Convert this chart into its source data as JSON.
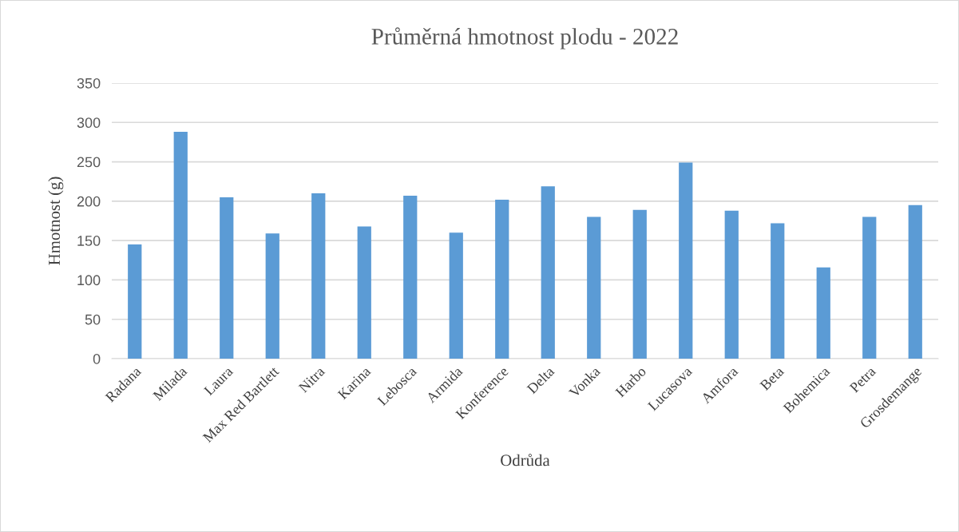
{
  "chart_data": {
    "type": "bar",
    "title": "Průměrná hmotnost plodu - 2022",
    "xlabel": "Odrůda",
    "ylabel": "Hmotnost (g)",
    "categories": [
      "Radana",
      "Milada",
      "Laura",
      "Max Red Bartlett",
      "Nitra",
      "Karina",
      "Lebosca",
      "Armida",
      "Konference",
      "Delta",
      "Vonka",
      "Harbo",
      "Lucasova",
      "Amfora",
      "Beta",
      "Bohemica",
      "Petra",
      "Grosdemange"
    ],
    "values": [
      145,
      288,
      205,
      159,
      210,
      168,
      207,
      160,
      202,
      219,
      180,
      189,
      249,
      188,
      172,
      116,
      180,
      195
    ],
    "color": "#5b9bd5",
    "ylim": [
      0,
      350
    ],
    "yticks": [
      0,
      50,
      100,
      150,
      200,
      250,
      300,
      350
    ],
    "grid": "y"
  }
}
